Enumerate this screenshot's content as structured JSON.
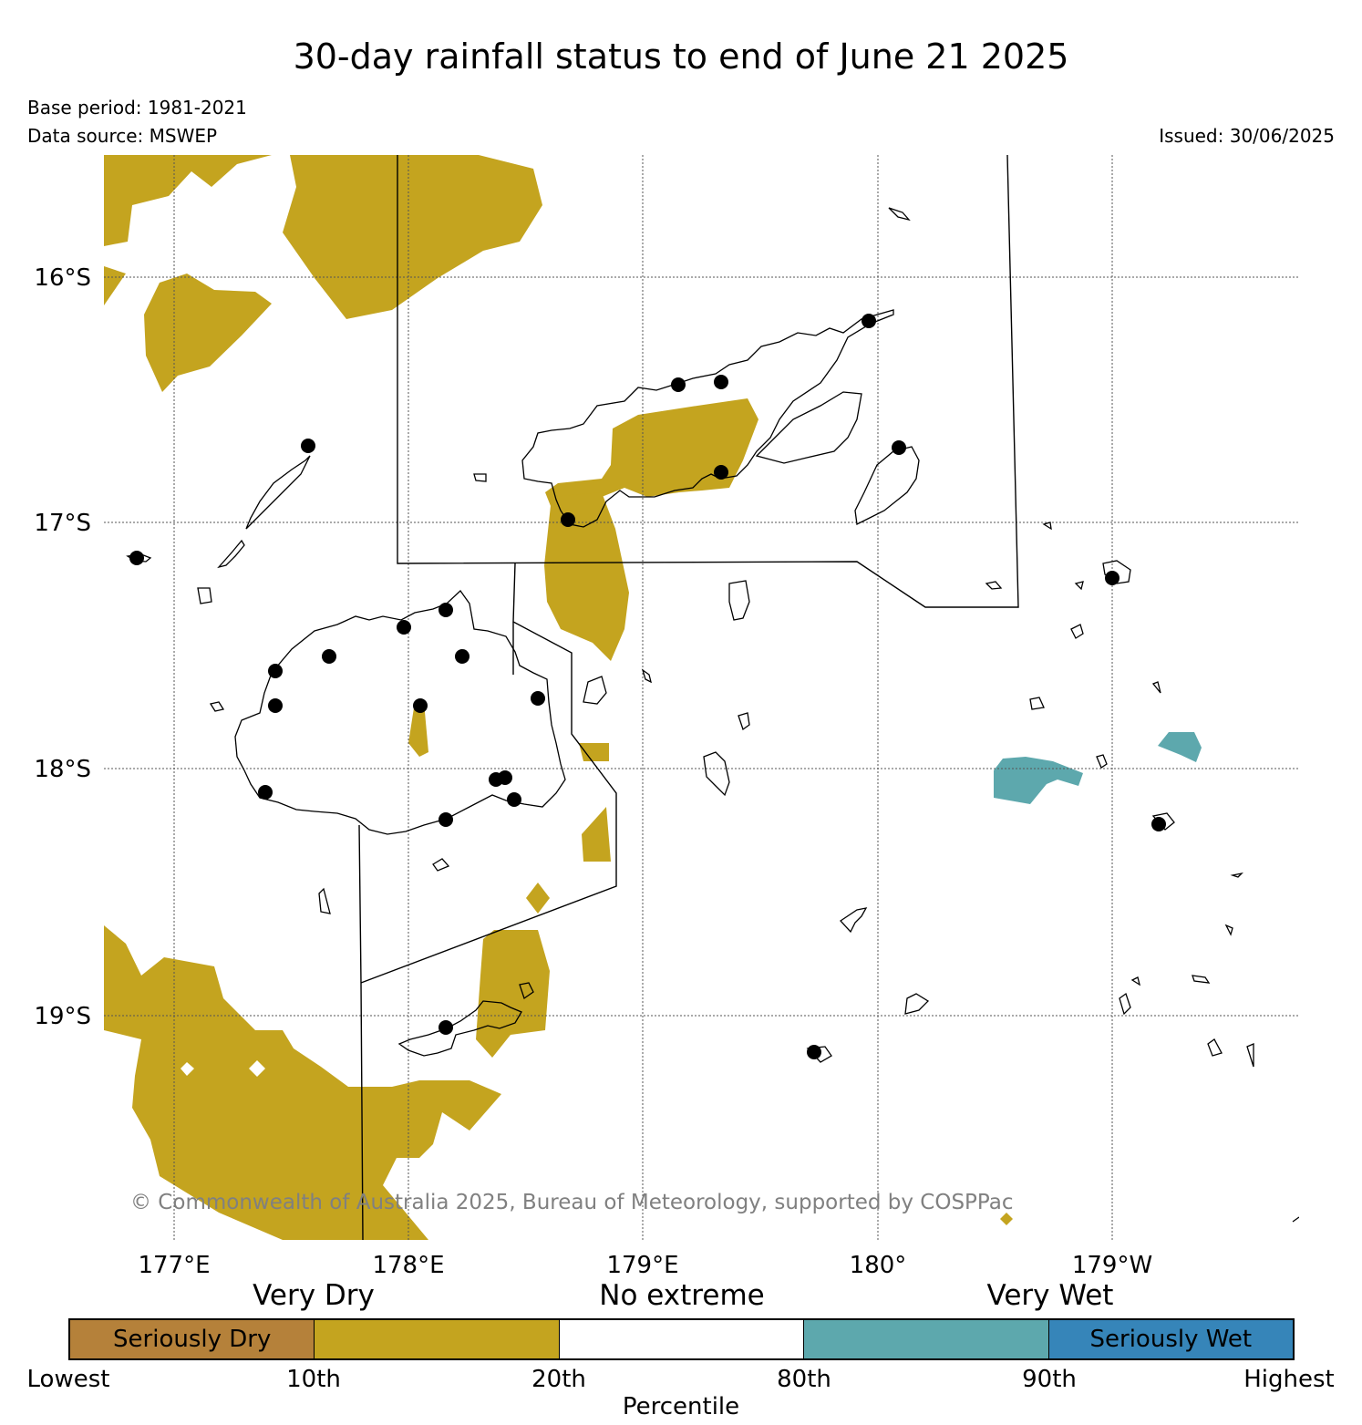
{
  "title": "30-day rainfall status to end of June 21 2025",
  "base_period": "Base period: 1981-2021",
  "data_source": "Data source: MSWEP",
  "issued": "Issued: 30/06/2025",
  "copyright": "© Commonwealth of Australia 2025, Bureau of Meteorology, supported by COSPPac",
  "map": {
    "latitude_labels": [
      "16°S",
      "17°S",
      "18°S",
      "19°S"
    ],
    "longitude_labels": [
      "177°E",
      "178°E",
      "179°E",
      "180°",
      "179°W"
    ],
    "colors": {
      "seriously_dry": "#b5813a",
      "very_dry": "#c4a41f",
      "no_extreme": "#ffffff",
      "very_wet": "#5da8ad",
      "seriously_wet": "#3685b9"
    }
  },
  "legend": {
    "categories": [
      "Very Dry",
      "No extreme",
      "Very Wet"
    ],
    "segments": [
      "Seriously Dry",
      "",
      "",
      "",
      "Seriously Wet"
    ],
    "ticks": [
      "Lowest",
      "10th",
      "20th",
      "80th",
      "90th",
      "Highest"
    ],
    "axis_label": "Percentile"
  }
}
